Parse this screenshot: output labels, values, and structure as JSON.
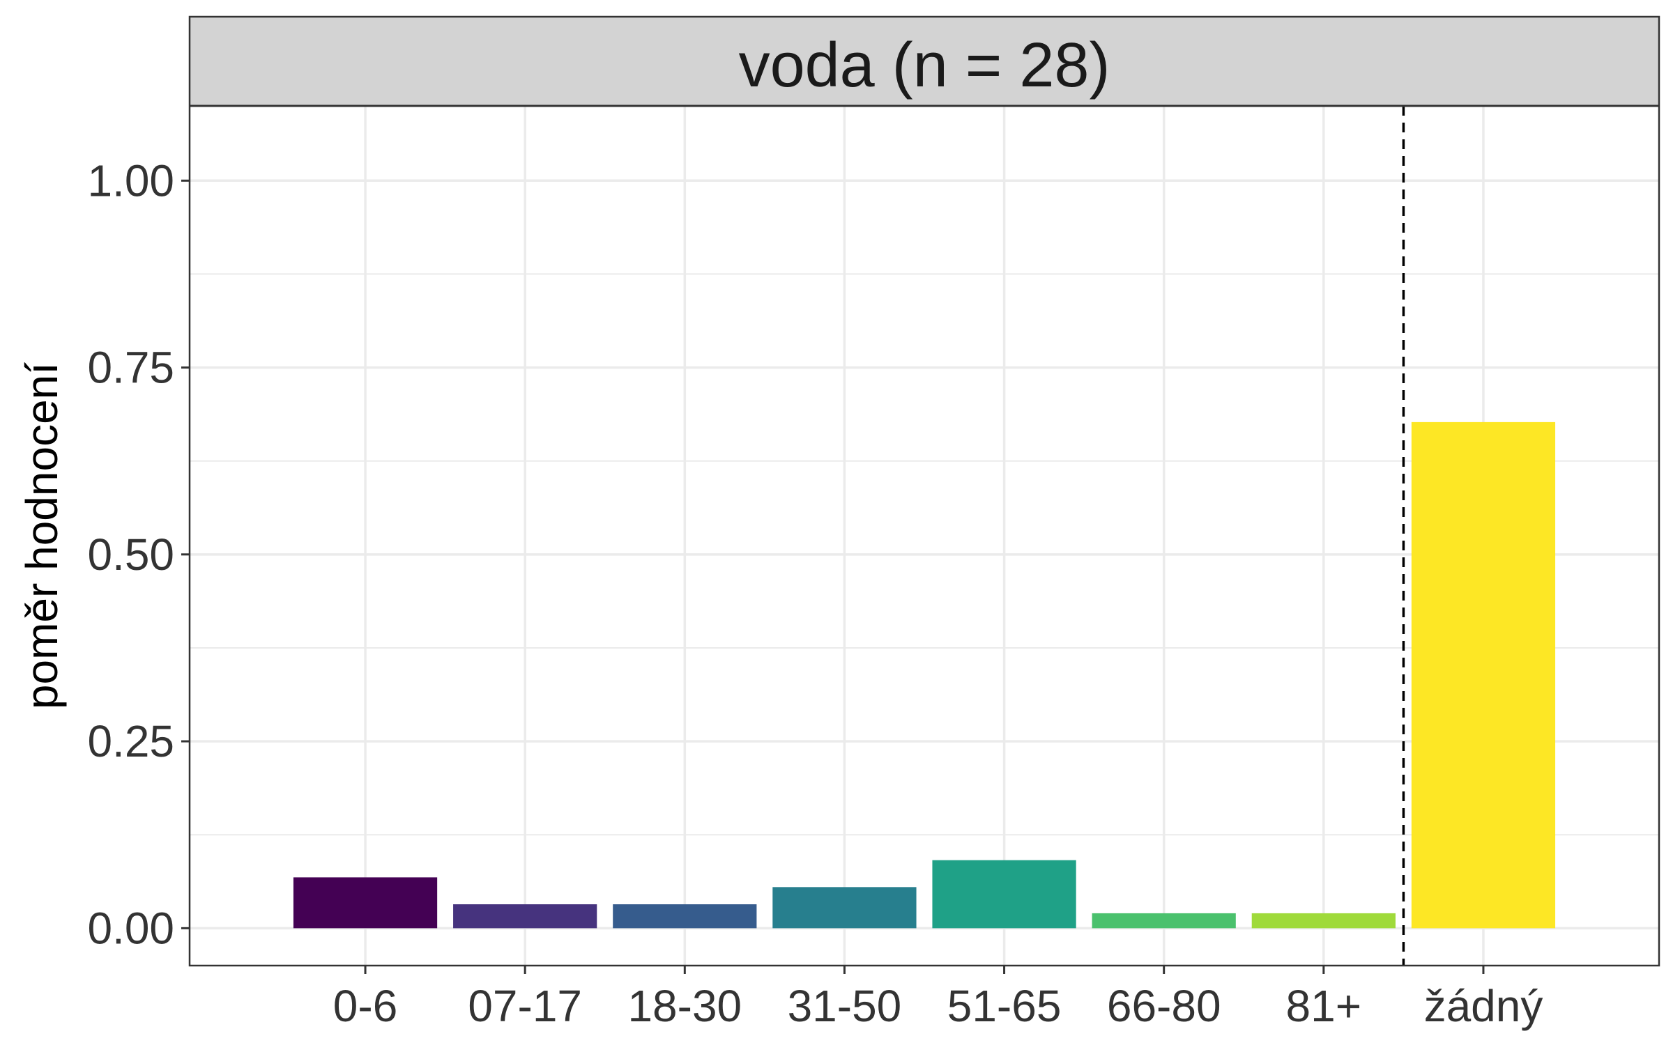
{
  "chart_data": {
    "type": "bar",
    "title": "voda (n = 28)",
    "xlabel": "",
    "ylabel": "poměr hodnocení",
    "categories": [
      "0-6",
      "07-17",
      "18-30",
      "31-50",
      "51-65",
      "66-80",
      "81+",
      "žádný"
    ],
    "values": [
      0.068,
      0.032,
      0.032,
      0.055,
      0.091,
      0.02,
      0.02,
      0.677
    ],
    "colors": [
      "#440154",
      "#46337E",
      "#365C8D",
      "#277F8E",
      "#1FA187",
      "#4AC16D",
      "#9FDA3A",
      "#FDE725"
    ],
    "ylim": [
      -0.05,
      1.1
    ],
    "yticks": [
      0,
      0.25,
      0.5,
      0.75,
      1.0
    ],
    "ytick_labels": [
      "0.00",
      "0.25",
      "0.50",
      "0.75",
      "1.00"
    ],
    "reference_line": {
      "after_category": "81+",
      "style": "dashed",
      "color": "#000000"
    },
    "grid": true,
    "legend": "none",
    "theme": {
      "strip_fill": "#D3D3D3",
      "panel_border": "#333333",
      "grid_color": "#EBEBEB"
    }
  }
}
